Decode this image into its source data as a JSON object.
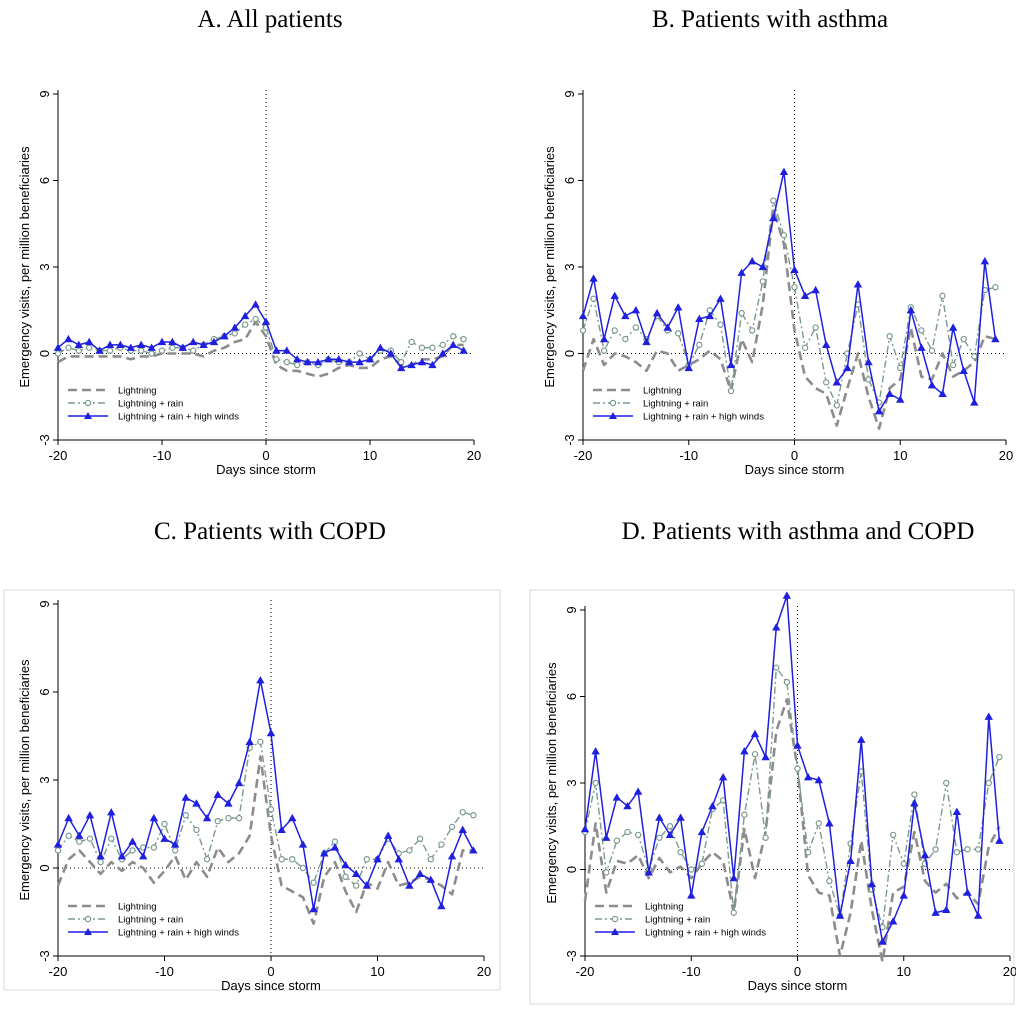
{
  "chart_data": [
    {
      "type": "line",
      "title": "A. All patients",
      "xlabel": "Days since storm",
      "ylabel": "Emergency visits, per million beneficiaries",
      "xlim": [
        -20,
        20
      ],
      "ylim": [
        -3,
        9
      ],
      "xticks": [
        "-20",
        "-10",
        "0",
        "10",
        "20"
      ],
      "yticks": [
        "-3",
        "0",
        "3",
        "6",
        "9"
      ],
      "legend_position": "bottom-left",
      "x": [
        -20,
        -19,
        -18,
        -17,
        -16,
        -15,
        -14,
        -13,
        -12,
        -11,
        -10,
        -9,
        -8,
        -7,
        -6,
        -5,
        -4,
        -3,
        -2,
        -1,
        0,
        1,
        2,
        3,
        4,
        5,
        6,
        7,
        8,
        9,
        10,
        11,
        12,
        13,
        14,
        15,
        16,
        17,
        18,
        19
      ],
      "series": [
        {
          "name": "Lightning",
          "values": [
            -0.3,
            -0.1,
            -0.1,
            -0.1,
            -0.1,
            -0.1,
            -0.1,
            -0.2,
            -0.1,
            -0.1,
            0.0,
            0.0,
            0.0,
            0.0,
            -0.1,
            0.1,
            0.2,
            0.4,
            0.5,
            1.1,
            0.6,
            -0.4,
            -0.6,
            -0.6,
            -0.7,
            -0.8,
            -0.7,
            -0.5,
            -0.4,
            -0.5,
            -0.5,
            -0.2,
            -0.1,
            -0.4,
            -0.4,
            -0.2,
            -0.2,
            -0.1,
            0.3,
            0.3
          ]
        },
        {
          "name": "Lightning + rain",
          "values": [
            0.0,
            0.2,
            0.1,
            0.2,
            0.1,
            0.1,
            0.2,
            0.1,
            0.1,
            0.0,
            0.1,
            0.2,
            0.2,
            0.1,
            0.3,
            0.5,
            0.6,
            0.7,
            1.0,
            1.2,
            0.9,
            -0.2,
            -0.3,
            -0.4,
            -0.3,
            -0.4,
            -0.2,
            -0.3,
            -0.3,
            0.0,
            -0.2,
            0.1,
            0.1,
            -0.3,
            0.4,
            0.2,
            0.2,
            0.3,
            0.6,
            0.5
          ]
        },
        {
          "name": "Lightning + rain + high winds",
          "values": [
            0.2,
            0.5,
            0.3,
            0.4,
            0.1,
            0.3,
            0.3,
            0.2,
            0.3,
            0.2,
            0.4,
            0.4,
            0.2,
            0.4,
            0.3,
            0.4,
            0.6,
            0.9,
            1.3,
            1.7,
            1.1,
            0.1,
            0.1,
            -0.2,
            -0.3,
            -0.3,
            -0.2,
            -0.2,
            -0.3,
            -0.3,
            -0.2,
            0.2,
            0.0,
            -0.5,
            -0.4,
            -0.3,
            -0.4,
            0.0,
            0.3,
            0.1
          ]
        }
      ]
    },
    {
      "type": "line",
      "title": "B. Patients with asthma",
      "xlabel": "Days since storm",
      "ylabel": "Emergency visits, per million beneficiaries",
      "xlim": [
        -20,
        20
      ],
      "ylim": [
        -3,
        9
      ],
      "xticks": [
        "-20",
        "-10",
        "0",
        "10",
        "20"
      ],
      "yticks": [
        "-3",
        "0",
        "3",
        "6",
        "9"
      ],
      "legend_position": "bottom-left",
      "x": [
        -20,
        -19,
        -18,
        -17,
        -16,
        -15,
        -14,
        -13,
        -12,
        -11,
        -10,
        -9,
        -8,
        -7,
        -6,
        -5,
        -4,
        -3,
        -2,
        -1,
        0,
        1,
        2,
        3,
        4,
        5,
        6,
        7,
        8,
        9,
        10,
        11,
        12,
        13,
        14,
        15,
        16,
        17,
        18,
        19
      ],
      "series": [
        {
          "name": "Lightning",
          "values": [
            -0.6,
            0.5,
            -0.4,
            0.0,
            -0.1,
            -0.3,
            -0.6,
            0.1,
            0.0,
            -0.6,
            -0.4,
            -0.2,
            0.1,
            -0.2,
            -1.3,
            0.5,
            -0.3,
            1.7,
            5.0,
            3.8,
            0.8,
            -0.8,
            -1.2,
            -1.4,
            -2.5,
            -1.2,
            0.0,
            -1.5,
            -2.6,
            -1.2,
            -0.9,
            0.9,
            -0.8,
            -0.9,
            0.0,
            -0.8,
            -0.6,
            -0.3,
            0.6,
            0.5
          ]
        },
        {
          "name": "Lightning + rain",
          "values": [
            0.8,
            1.9,
            0.1,
            0.8,
            0.5,
            0.9,
            0.5,
            1.3,
            0.8,
            0.7,
            -0.4,
            0.3,
            1.5,
            1.0,
            -1.3,
            1.4,
            0.8,
            2.5,
            5.3,
            4.1,
            2.3,
            0.2,
            0.9,
            -1.0,
            -1.8,
            0.0,
            1.7,
            -0.9,
            -1.7,
            0.6,
            -0.5,
            1.6,
            0.8,
            0.1,
            2.0,
            -0.4,
            0.5,
            -0.1,
            2.2,
            2.3
          ]
        },
        {
          "name": "Lightning + rain + high winds",
          "values": [
            1.3,
            2.6,
            0.5,
            2.0,
            1.3,
            1.5,
            0.4,
            1.4,
            0.9,
            1.6,
            -0.5,
            1.2,
            1.3,
            1.9,
            -0.4,
            2.8,
            3.2,
            3.0,
            4.7,
            6.3,
            2.9,
            2.0,
            2.2,
            0.3,
            -1.0,
            -0.5,
            2.4,
            -0.3,
            -2.0,
            -1.4,
            -1.6,
            1.5,
            0.2,
            -1.1,
            -1.4,
            0.9,
            -0.6,
            -1.7,
            3.2,
            0.5
          ]
        }
      ]
    },
    {
      "type": "line",
      "title": "C. Patients with COPD",
      "xlabel": "Days since storm",
      "ylabel": "Emergency visits, per million beneficiaries",
      "xlim": [
        -20,
        20
      ],
      "ylim": [
        -3,
        9
      ],
      "xticks": [
        "-20",
        "-10",
        "0",
        "10",
        "20"
      ],
      "yticks": [
        "-3",
        "0",
        "3",
        "6",
        "9"
      ],
      "legend_position": "bottom-left",
      "x": [
        -20,
        -19,
        -18,
        -17,
        -16,
        -15,
        -14,
        -13,
        -12,
        -11,
        -10,
        -9,
        -8,
        -7,
        -6,
        -5,
        -4,
        -3,
        -2,
        -1,
        0,
        1,
        2,
        3,
        4,
        5,
        6,
        7,
        8,
        9,
        10,
        11,
        12,
        13,
        14,
        15,
        16,
        17,
        18,
        19
      ],
      "series": [
        {
          "name": "Lightning",
          "values": [
            -0.6,
            0.3,
            0.6,
            0.2,
            -0.2,
            0.2,
            -0.1,
            0.2,
            0.0,
            -0.5,
            -0.1,
            0.4,
            -0.4,
            0.2,
            -0.3,
            0.7,
            0.2,
            0.5,
            1.1,
            3.8,
            1.1,
            -0.6,
            -0.8,
            -1.0,
            -1.9,
            -0.3,
            0.2,
            -0.8,
            -1.5,
            -0.5,
            -0.7,
            0.2,
            -0.6,
            -0.5,
            -0.3,
            -0.4,
            -0.6,
            -0.9,
            0.6,
            0.6
          ]
        },
        {
          "name": "Lightning + rain",
          "values": [
            0.6,
            1.1,
            0.9,
            1.0,
            0.2,
            1.0,
            0.3,
            0.6,
            0.7,
            0.7,
            1.5,
            0.6,
            1.8,
            1.3,
            0.3,
            1.6,
            1.7,
            1.7,
            4.1,
            4.3,
            2.0,
            0.3,
            0.3,
            0.0,
            -0.5,
            0.5,
            0.9,
            -0.3,
            -0.6,
            0.3,
            0.3,
            1.0,
            0.5,
            0.6,
            1.0,
            0.3,
            0.8,
            1.4,
            1.9,
            1.8
          ]
        },
        {
          "name": "Lightning + rain + high winds",
          "values": [
            0.8,
            1.7,
            1.1,
            1.8,
            0.4,
            1.9,
            0.4,
            0.9,
            0.4,
            1.7,
            1.0,
            0.8,
            2.4,
            2.2,
            1.7,
            2.5,
            2.2,
            2.9,
            4.3,
            6.4,
            4.6,
            1.3,
            1.7,
            0.8,
            -1.4,
            0.5,
            0.7,
            0.1,
            -0.2,
            -0.6,
            0.3,
            1.1,
            0.3,
            -0.6,
            -0.2,
            -0.4,
            -1.3,
            0.4,
            1.3,
            0.6
          ]
        }
      ]
    },
    {
      "type": "line",
      "title": "D. Patients with asthma and COPD",
      "xlabel": "Days since storm",
      "ylabel": "Emergency visits, per million beneficiaries",
      "xlim": [
        -20,
        20
      ],
      "ylim": [
        -3,
        9
      ],
      "xticks": [
        "-20",
        "-10",
        "0",
        "10",
        "20"
      ],
      "yticks": [
        "-3",
        "0",
        "3",
        "6",
        "9"
      ],
      "legend_position": "bottom-left",
      "x": [
        -20,
        -19,
        -18,
        -17,
        -16,
        -15,
        -14,
        -13,
        -12,
        -11,
        -10,
        -9,
        -8,
        -7,
        -6,
        -5,
        -4,
        -3,
        -2,
        -1,
        0,
        1,
        2,
        3,
        4,
        5,
        6,
        7,
        8,
        9,
        10,
        11,
        12,
        13,
        14,
        15,
        16,
        17,
        18,
        19
      ],
      "series": [
        {
          "name": "Lightning",
          "values": [
            -1.1,
            1.6,
            -0.8,
            0.3,
            0.2,
            0.5,
            -0.3,
            0.4,
            -0.1,
            0.1,
            -0.3,
            0.2,
            0.6,
            0.3,
            -1.5,
            1.4,
            -0.3,
            1.3,
            4.8,
            5.9,
            3.5,
            -0.2,
            -0.8,
            -0.9,
            -3.0,
            -1.5,
            1.0,
            -1.4,
            -3.2,
            -0.8,
            -0.6,
            1.3,
            -0.4,
            -0.8,
            -0.5,
            -1.0,
            -0.8,
            -1.2,
            0.8,
            1.5
          ]
        },
        {
          "name": "Lightning + rain",
          "values": [
            1.3,
            3.0,
            -0.1,
            1.0,
            1.3,
            1.2,
            0.0,
            1.1,
            1.5,
            0.6,
            0.0,
            0.2,
            2.1,
            2.4,
            -1.5,
            1.9,
            4.0,
            1.1,
            7.0,
            6.5,
            3.5,
            0.6,
            1.6,
            -0.4,
            -1.6,
            0.9,
            3.4,
            -0.7,
            -2.0,
            1.2,
            0.2,
            2.6,
            0.2,
            0.7,
            3.0,
            0.6,
            0.7,
            0.7,
            3.0,
            3.9
          ]
        },
        {
          "name": "Lightning + rain + high winds",
          "values": [
            1.4,
            4.1,
            1.1,
            2.5,
            2.2,
            2.7,
            -0.1,
            1.8,
            1.2,
            1.8,
            -0.9,
            1.3,
            2.2,
            3.2,
            -0.3,
            4.1,
            4.7,
            3.9,
            8.4,
            9.5,
            4.3,
            3.2,
            3.1,
            1.6,
            -1.6,
            0.3,
            4.5,
            -0.5,
            -2.5,
            -1.8,
            -0.9,
            2.3,
            0.5,
            -1.5,
            -1.4,
            2.0,
            -0.8,
            -1.6,
            5.3,
            1.0
          ]
        }
      ]
    }
  ]
}
